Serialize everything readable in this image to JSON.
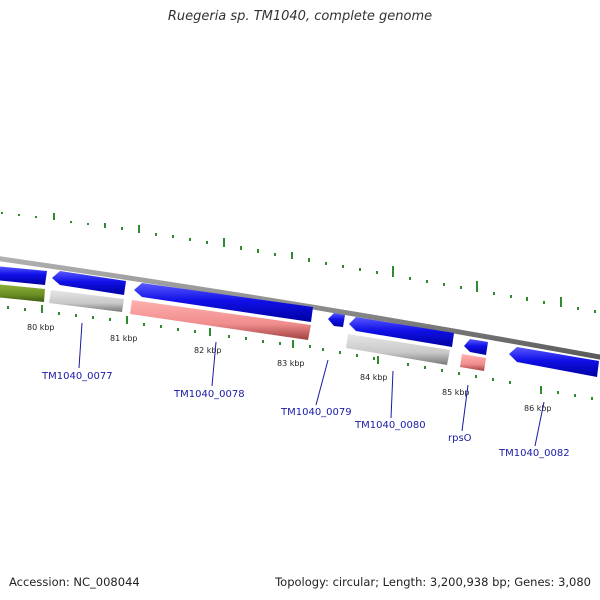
{
  "title": "Ruegeria sp. TM1040, complete genome",
  "footer": {
    "accession": "Accession: NC_008044",
    "summary": "Topology: circular; Length: 3,200,938 bp; Genes: 3,080"
  },
  "scale_labels": [
    "80 kbp",
    "81 kbp",
    "82 kbp",
    "83 kbp",
    "84 kbp",
    "85 kbp",
    "86 kbp"
  ],
  "gene_labels": [
    "TM1040_0077",
    "TM1040_0078",
    "TM1040_0079",
    "TM1040_0080",
    "rpsO",
    "TM1040_0082"
  ],
  "colors": {
    "cds": "#1010e8",
    "rrna_like": "#f08c8c",
    "grey_feature": "#c8c8c8",
    "green_feature": "#6b8e23",
    "backbone": "#8c8c8c",
    "gc_ticks": "#2e8b2e",
    "label": "#1a1aa6"
  }
}
